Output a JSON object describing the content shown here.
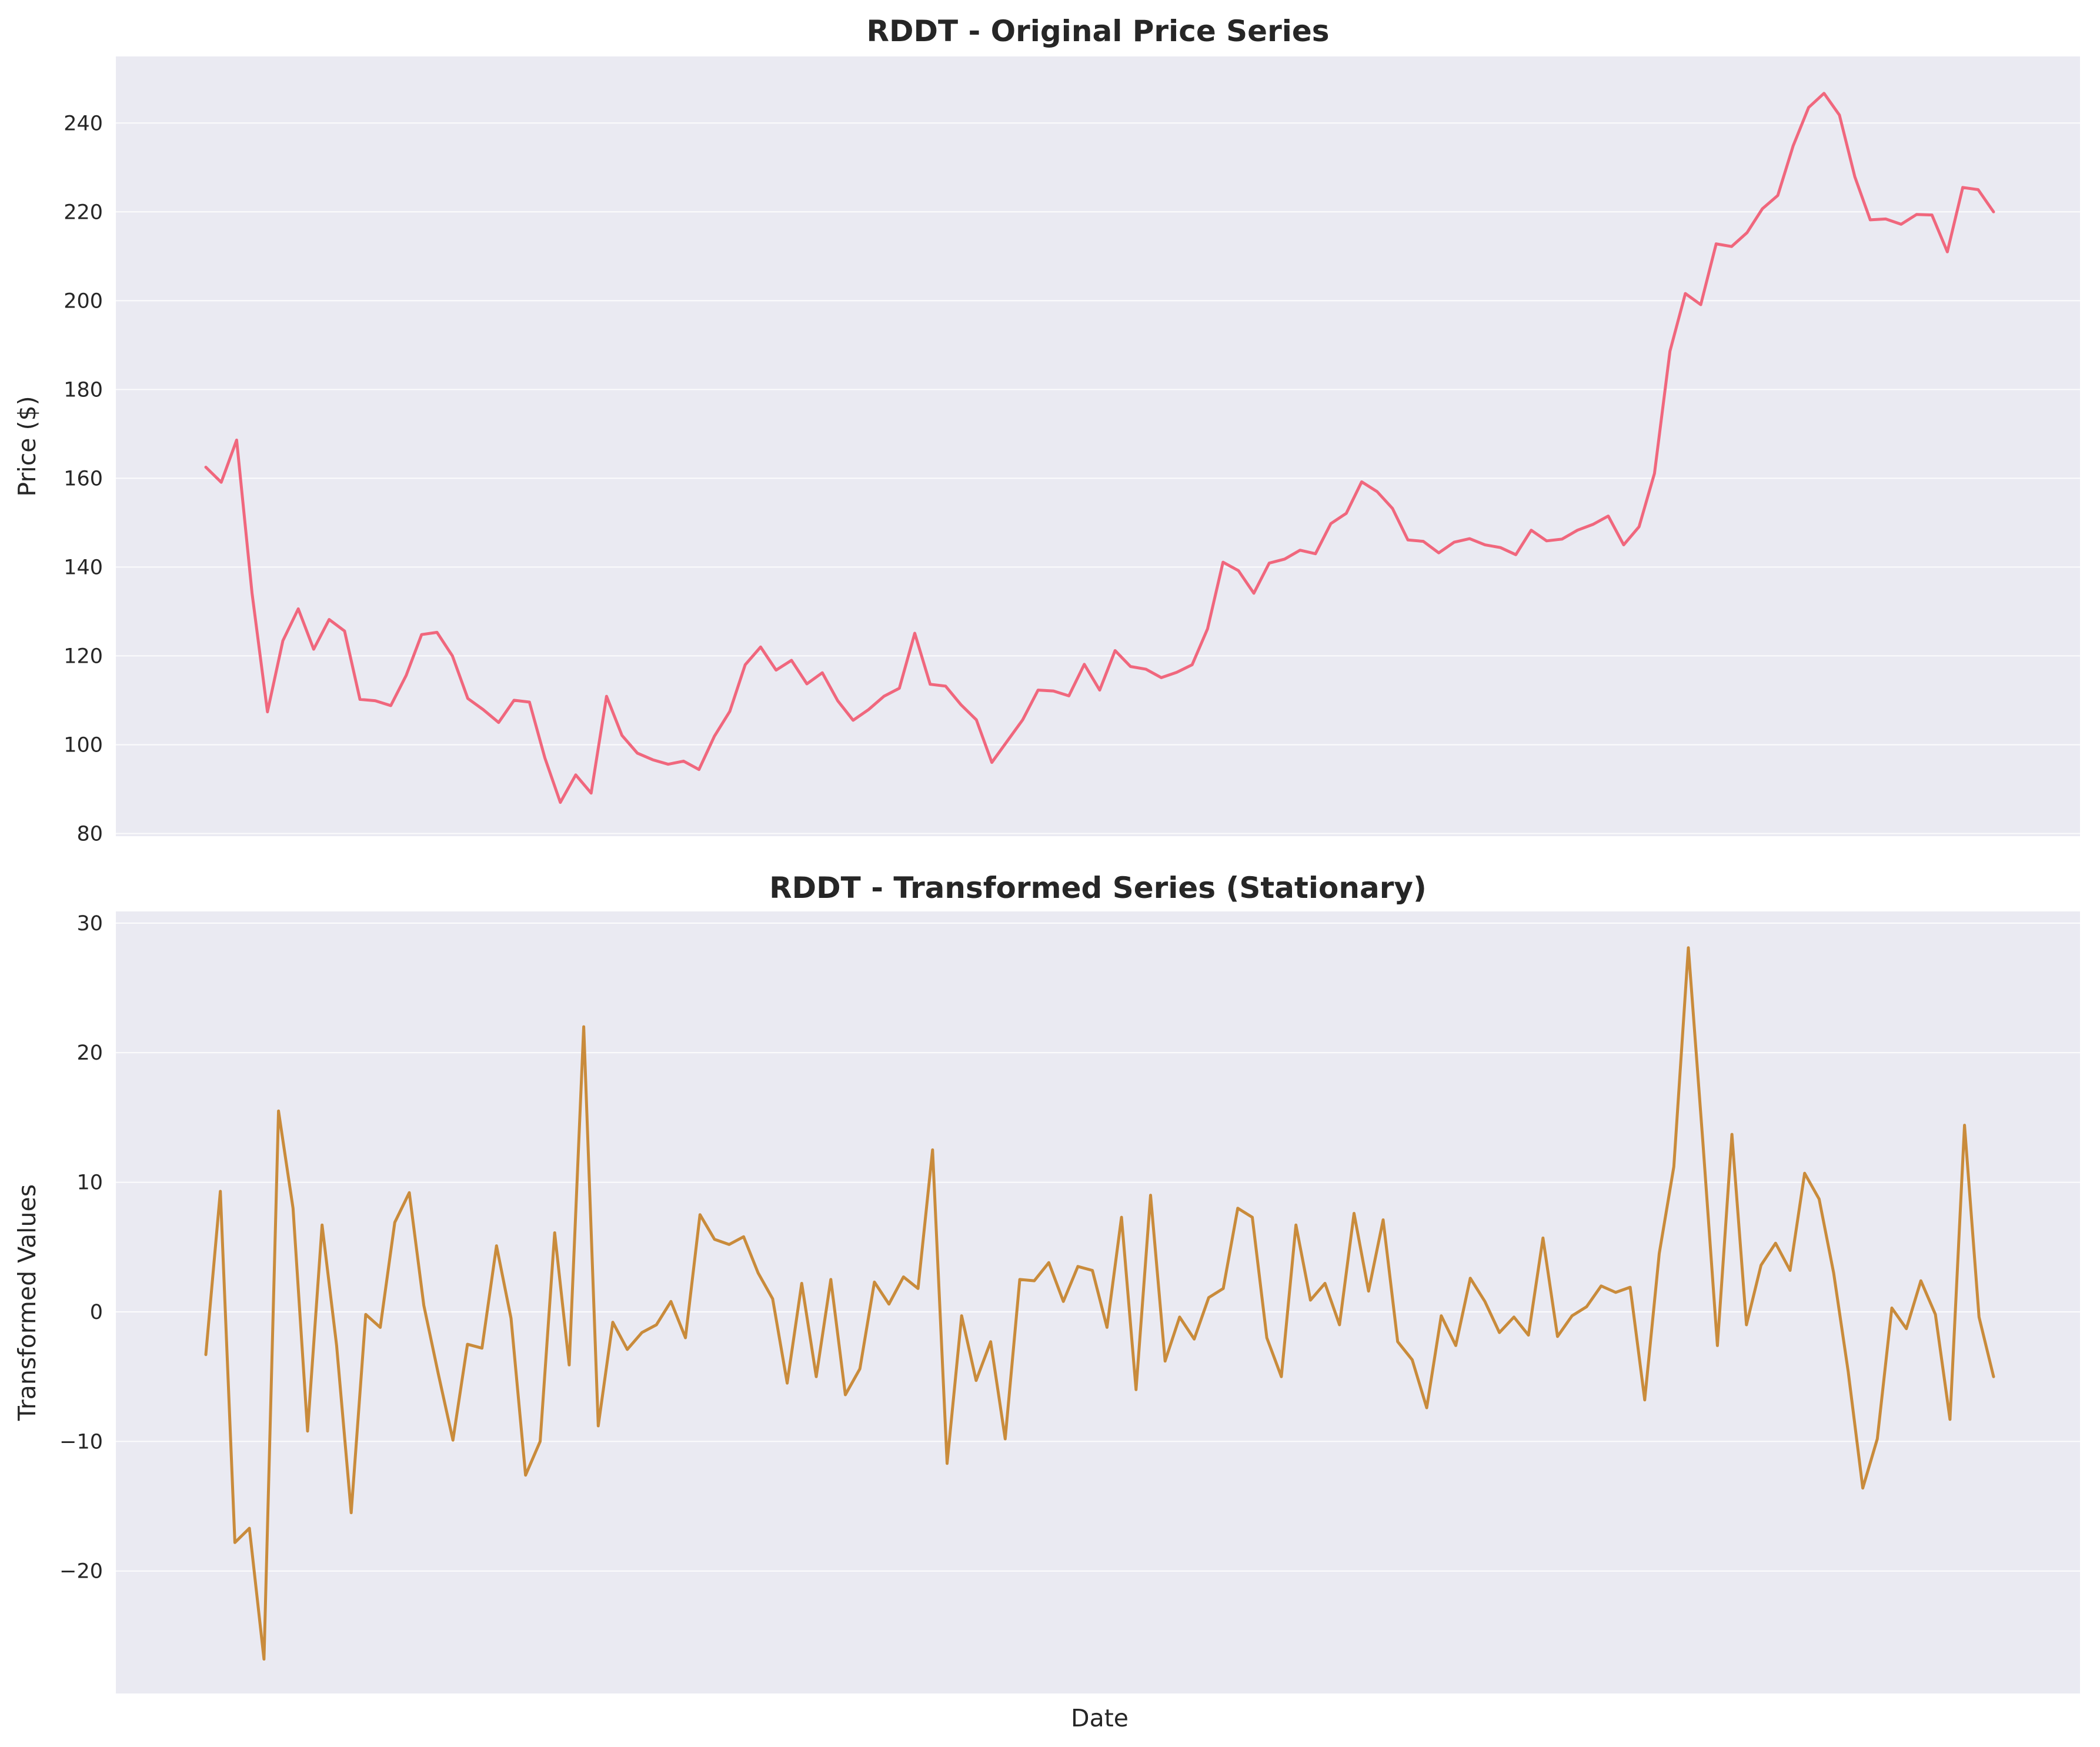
{
  "chart_data": [
    {
      "type": "line",
      "title": "RDDT - Original Price Series",
      "xlabel": "",
      "ylabel": "Price ($)",
      "ylim": [
        79.4,
        255.0
      ],
      "yticks": [
        80,
        100,
        120,
        140,
        160,
        180,
        200,
        220,
        240
      ],
      "x_ticks_shown": false,
      "grid": "horizontal",
      "legend": "none",
      "series": [
        {
          "color": "#f0677d",
          "values": [
            162.5,
            159.1,
            168.6,
            134.1,
            107.4,
            123.4,
            130.6,
            121.5,
            128.2,
            125.6,
            110.2,
            109.9,
            108.8,
            115.6,
            124.8,
            125.3,
            120.0,
            110.4,
            107.9,
            105.0,
            110.0,
            109.6,
            97.0,
            87.0,
            93.2,
            89.1,
            110.9,
            102.1,
            98.1,
            96.6,
            95.6,
            96.3,
            94.4,
            101.9,
            107.5,
            118.0,
            122.0,
            116.8,
            119.0,
            113.7,
            116.2,
            109.9,
            105.5,
            107.9,
            110.9,
            112.7,
            125.1,
            113.6,
            113.2,
            109.0,
            105.6,
            96.0,
            100.8,
            105.6,
            112.3,
            112.1,
            111.0,
            118.1,
            112.3,
            121.2,
            117.6,
            117.0,
            115.1,
            116.3,
            118.0,
            126.1,
            141.1,
            139.2,
            134.1,
            140.9,
            141.8,
            143.8,
            143.0,
            149.8,
            152.1,
            159.2,
            157.0,
            153.2,
            146.1,
            145.8,
            143.2,
            145.6,
            146.4,
            145.0,
            144.4,
            142.8,
            148.3,
            145.9,
            146.3,
            148.3,
            149.6,
            151.5,
            145.0,
            149.1,
            161.1,
            188.6,
            201.6,
            199.1,
            212.8,
            212.2,
            215.3,
            220.7,
            223.7,
            234.9,
            243.5,
            246.7,
            241.8,
            227.9,
            218.2,
            218.4,
            217.2,
            219.4,
            219.3,
            211.0,
            225.5,
            225.0,
            220.0
          ]
        }
      ]
    },
    {
      "type": "line",
      "title": "RDDT - Transformed Series (Stationary)",
      "xlabel": "Date",
      "ylabel": "Transformed Values",
      "ylim": [
        -29.45,
        30.9
      ],
      "yticks": [
        -20,
        -10,
        0,
        10,
        20,
        30
      ],
      "x_ticks_shown": false,
      "grid": "horizontal",
      "legend": "none",
      "series": [
        {
          "color": "#c98b3b",
          "values": [
            -3.3,
            9.3,
            -17.8,
            -16.7,
            -26.8,
            15.5,
            8.0,
            -9.2,
            6.7,
            -2.6,
            -15.5,
            -0.2,
            -1.2,
            6.9,
            9.2,
            0.5,
            -4.8,
            -9.9,
            -2.5,
            -2.8,
            5.1,
            -0.5,
            -12.6,
            -10.0,
            6.1,
            -4.1,
            22.0,
            -8.8,
            -0.8,
            -2.9,
            -1.6,
            -1.0,
            0.8,
            -2.0,
            7.5,
            5.6,
            5.2,
            5.8,
            3.0,
            1.0,
            -5.5,
            2.2,
            -5.0,
            2.5,
            -6.4,
            -4.4,
            2.3,
            0.6,
            2.7,
            1.8,
            12.5,
            -11.7,
            -0.3,
            -5.3,
            -2.3,
            -9.8,
            2.5,
            2.4,
            3.8,
            0.8,
            3.5,
            3.2,
            -1.2,
            7.3,
            -6.0,
            9.0,
            -3.8,
            -0.4,
            -2.1,
            1.1,
            1.8,
            8.0,
            7.3,
            -2.0,
            -5.0,
            6.7,
            0.9,
            2.2,
            -1.0,
            7.6,
            1.6,
            7.1,
            -2.3,
            -3.7,
            -7.4,
            -0.3,
            -2.6,
            2.6,
            0.8,
            -1.6,
            -0.4,
            -1.8,
            5.7,
            -1.9,
            -0.3,
            0.4,
            2.0,
            1.5,
            1.9,
            -6.8,
            4.5,
            11.2,
            28.1,
            13.1,
            -2.6,
            13.7,
            -1.0,
            3.6,
            5.3,
            3.2,
            10.7,
            8.7,
            3.0,
            -4.6,
            -13.6,
            -9.8,
            0.3,
            -1.3,
            2.4,
            -0.2,
            -8.3,
            14.4,
            -0.4,
            -5.0
          ]
        }
      ]
    }
  ]
}
